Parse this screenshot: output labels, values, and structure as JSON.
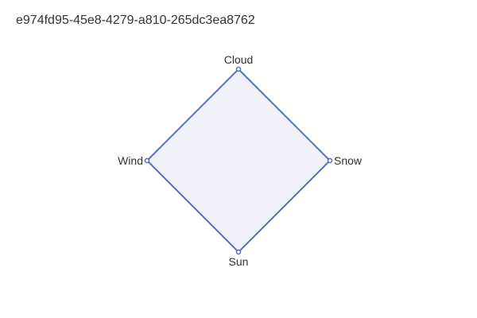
{
  "chart_title": "e974fd95-45e8-4279-a810-265dc3ea8762",
  "chart_data": {
    "type": "radar",
    "title": "e974fd95-45e8-4279-a810-265dc3ea8762",
    "indicators": [
      "Cloud",
      "Snow",
      "Sun",
      "Wind"
    ],
    "series": [
      {
        "values": [
          100,
          100,
          100,
          100
        ]
      }
    ],
    "max": 100,
    "levels": 5,
    "colors": {
      "series_line": "#5470c6",
      "series_fill": "#eef0f8",
      "grid": "#e0e0e0",
      "spoke": "#e6e6e6",
      "label": "#333333"
    }
  }
}
